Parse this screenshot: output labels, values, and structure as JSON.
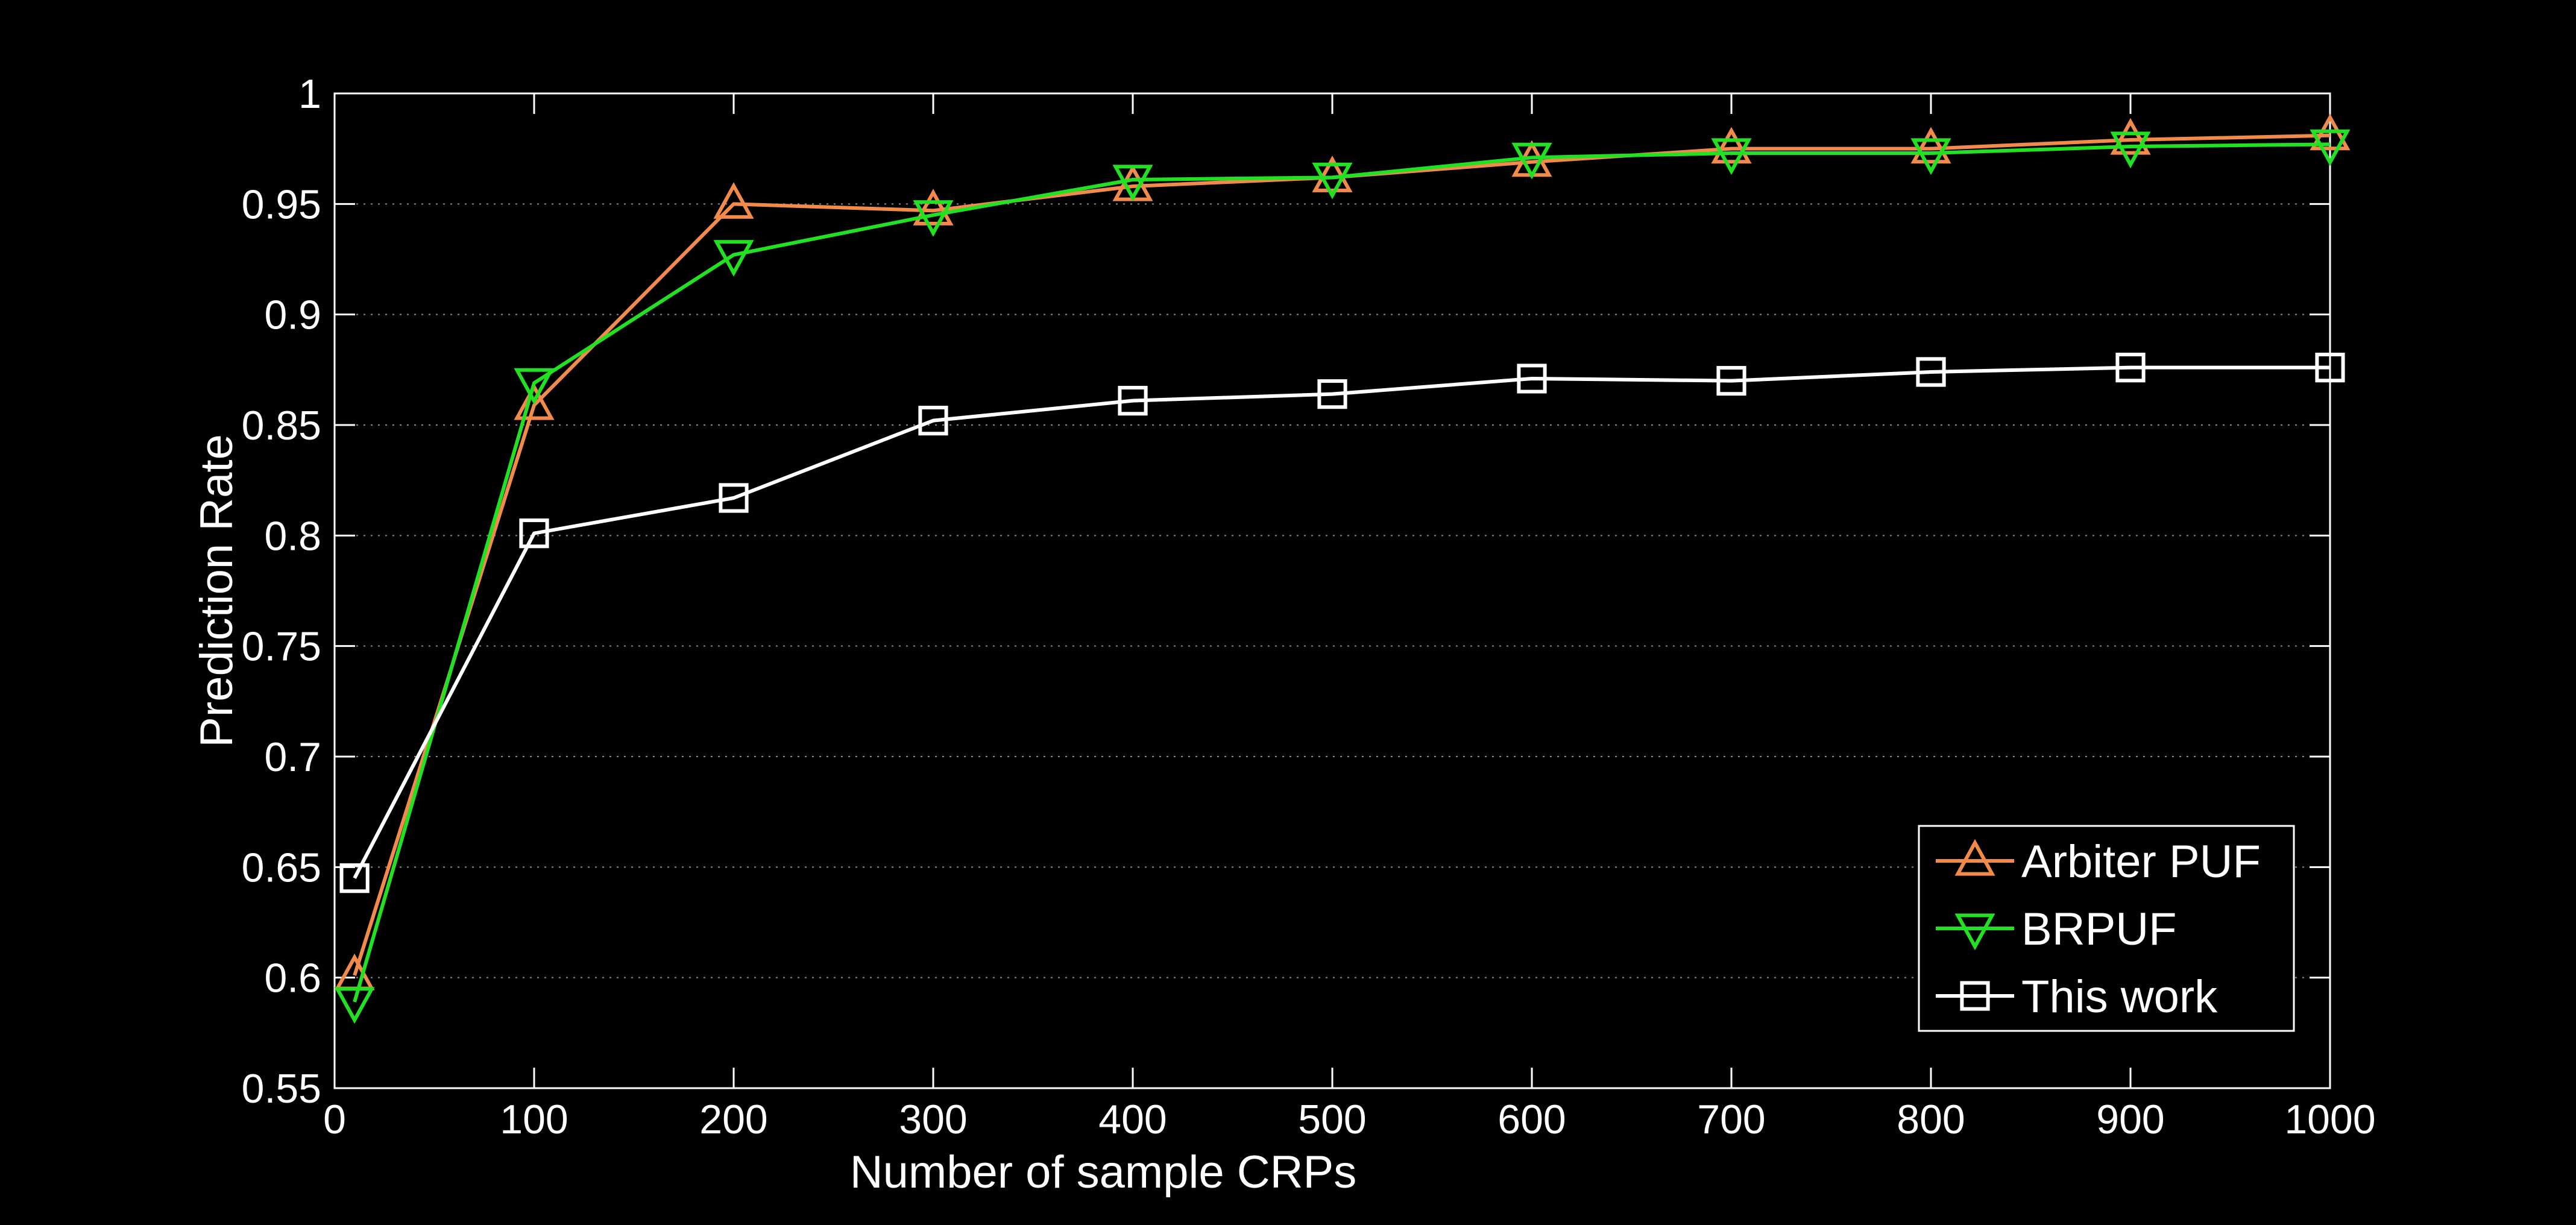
{
  "chart_data": {
    "type": "line",
    "title": "",
    "xlabel": "Number of sample CRPs",
    "ylabel": "Prediction Rate",
    "xlim": [
      0,
      1000
    ],
    "ylim": [
      0.55,
      1
    ],
    "xticks": [
      "0",
      "100",
      "200",
      "300",
      "400",
      "500",
      "600",
      "700",
      "800",
      "900",
      "1000"
    ],
    "yticks": [
      "0.55",
      "0.6",
      "0.65",
      "0.7",
      "0.75",
      "0.8",
      "0.85",
      "0.9",
      "0.95",
      "1"
    ],
    "grid": "horizontal dotted",
    "legend_position": "bottom-right",
    "x": [
      10,
      100,
      200,
      300,
      400,
      500,
      600,
      700,
      800,
      900,
      1000
    ],
    "series": [
      {
        "name": "Arbiter PUF",
        "marker": "triangle-up",
        "color": "#f28a4c",
        "values": [
          0.601,
          0.859,
          0.95,
          0.947,
          0.958,
          0.962,
          0.969,
          0.975,
          0.975,
          0.979,
          0.981
        ]
      },
      {
        "name": "BRPUF",
        "marker": "triangle-down",
        "color": "#22e022",
        "values": [
          0.589,
          0.869,
          0.927,
          0.945,
          0.961,
          0.962,
          0.971,
          0.973,
          0.973,
          0.976,
          0.977
        ]
      },
      {
        "name": "This work",
        "marker": "square",
        "color": "#ffffff",
        "values": [
          0.645,
          0.801,
          0.817,
          0.852,
          0.861,
          0.864,
          0.871,
          0.87,
          0.874,
          0.876,
          0.876
        ]
      }
    ]
  }
}
